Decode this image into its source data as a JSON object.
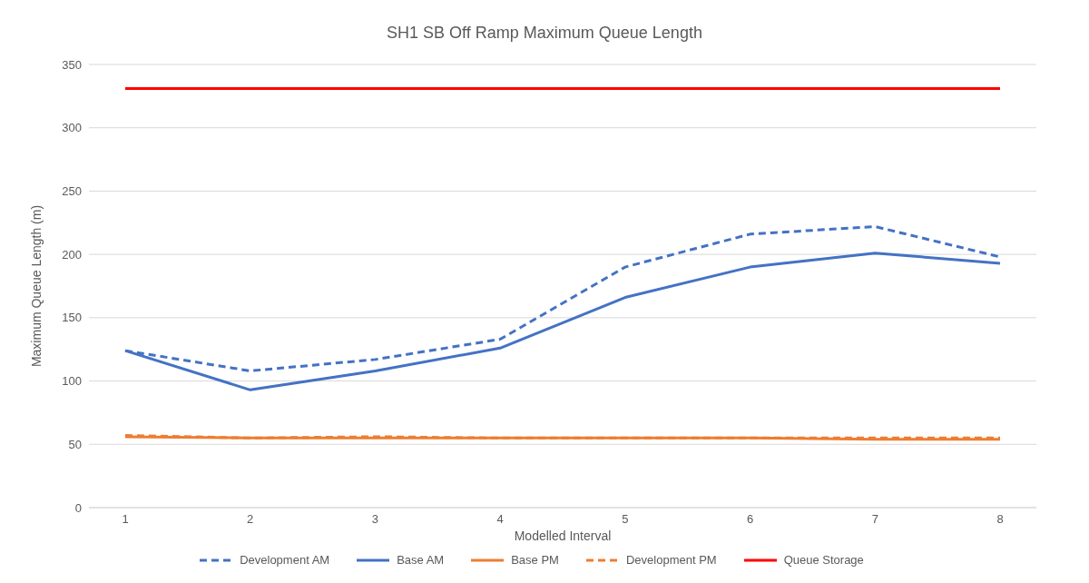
{
  "chart_data": {
    "type": "line",
    "title": "SH1 SB Off Ramp Maximum Queue Length",
    "xlabel": "Modelled Interval",
    "ylabel": "Maximum Queue Length (m)",
    "categories": [
      "1",
      "2",
      "3",
      "4",
      "5",
      "6",
      "7",
      "8"
    ],
    "series": [
      {
        "name": "Development AM",
        "color": "#4472c4",
        "line_style": "dashed",
        "values": [
          124,
          108,
          117,
          133,
          190,
          216,
          222,
          198
        ]
      },
      {
        "name": "Base AM",
        "color": "#4472c4",
        "line_style": "solid",
        "values": [
          124,
          93,
          108,
          126,
          166,
          190,
          201,
          193
        ]
      },
      {
        "name": "Base PM",
        "color": "#ed7d31",
        "line_style": "solid",
        "values": [
          56,
          55,
          55,
          55,
          55,
          55,
          54,
          54
        ]
      },
      {
        "name": "Development PM",
        "color": "#ed7d31",
        "line_style": "dashed",
        "values": [
          57,
          55,
          56,
          55,
          55,
          55,
          55,
          55
        ]
      },
      {
        "name": "Queue Storage",
        "color": "#ff0000",
        "line_style": "solid",
        "values": [
          331,
          331,
          331,
          331,
          331,
          331,
          331,
          331
        ]
      }
    ],
    "ylim": [
      0,
      350
    ],
    "yticks": [
      0,
      50,
      100,
      150,
      200,
      250,
      300,
      350
    ],
    "grid": "y",
    "legend": "bottom",
    "marker": "none"
  }
}
